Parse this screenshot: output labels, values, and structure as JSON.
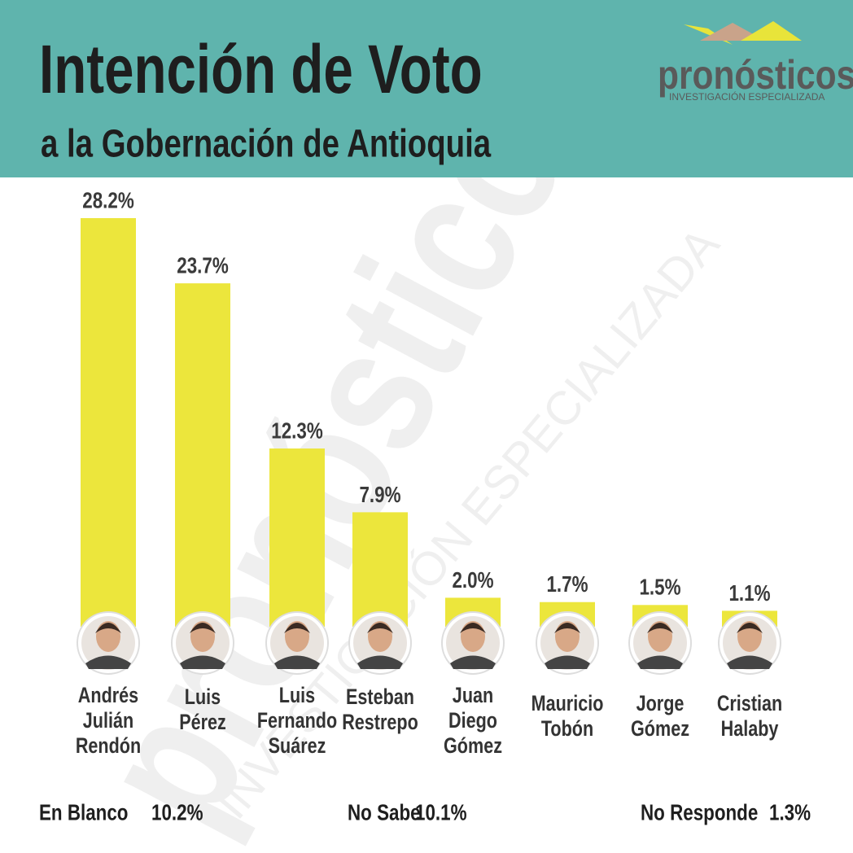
{
  "chart_data": {
    "type": "bar",
    "title": "Intención de Voto",
    "subtitle": "a la Gobernación de Antioquia",
    "logo": "pronósticos",
    "logo_tagline": "INVESTIGACIÓN ESPECIALIZADA",
    "categories": [
      [
        "Andrés",
        "Julián",
        "Rendón"
      ],
      [
        "Luis",
        "Pérez"
      ],
      [
        "Luis",
        "Fernando",
        "Suárez"
      ],
      [
        "Esteban",
        "Restrepo"
      ],
      [
        "Juan",
        "Diego",
        "Gómez"
      ],
      [
        "Mauricio",
        "Tobón"
      ],
      [
        "Jorge",
        "Gómez"
      ],
      [
        "Cristian",
        "Halaby"
      ]
    ],
    "values": [
      28.2,
      23.7,
      12.3,
      7.9,
      2.0,
      1.7,
      1.5,
      1.1
    ],
    "value_labels": [
      "28.2%",
      "23.7%",
      "12.3%",
      "7.9%",
      "2.0%",
      "1.7%",
      "1.5%",
      "1.1%"
    ],
    "color": "#ece63c",
    "notes": [
      {
        "label": "En Blanco",
        "value": "10.2%"
      },
      {
        "label": "No Sabe",
        "value": "10.1%"
      },
      {
        "label": "No Responde",
        "value": "1.3%"
      }
    ]
  }
}
